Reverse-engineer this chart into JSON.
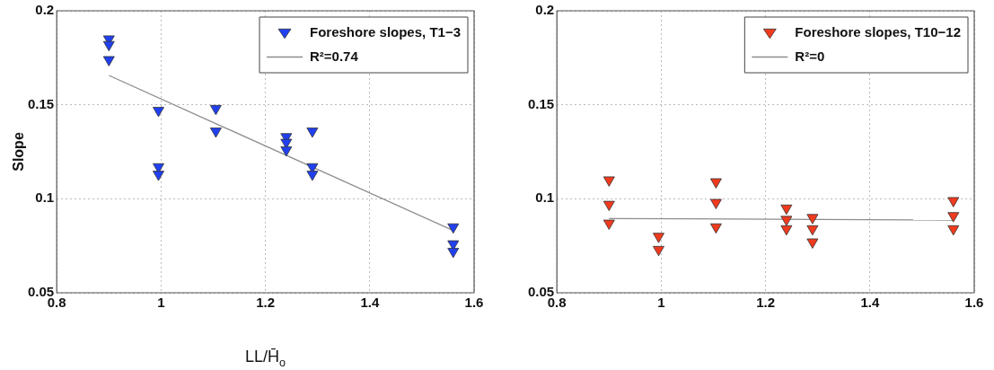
{
  "chart_data": [
    {
      "type": "scatter",
      "ylabel": "Slope",
      "xlabel": "LL/H̄$_{o}$",
      "xlim": [
        0.8,
        1.6
      ],
      "ylim": [
        0.05,
        0.2
      ],
      "xticks": [
        0.8,
        1,
        1.2,
        1.4,
        1.6
      ],
      "yticks": [
        0.05,
        0.1,
        0.15,
        0.2
      ],
      "grid": true,
      "legend": "top right",
      "series": [
        {
          "name": "Foreshore slopes, T1−3",
          "marker": "triangle",
          "color": "#2040f0",
          "x": [
            0.9,
            0.9,
            0.9,
            0.995,
            0.995,
            0.995,
            1.105,
            1.105,
            1.24,
            1.24,
            1.24,
            1.29,
            1.29,
            1.29,
            1.56,
            1.56,
            1.56
          ],
          "values": [
            0.185,
            0.182,
            0.174,
            0.147,
            0.117,
            0.113,
            0.148,
            0.136,
            0.133,
            0.13,
            0.126,
            0.136,
            0.117,
            0.113,
            0.085,
            0.076,
            0.072
          ]
        },
        {
          "name": "R²=0.74",
          "type": "line",
          "marker": "none",
          "color": "#8c8c8c",
          "x": [
            0.9,
            1.56
          ],
          "values": [
            0.1656,
            0.0831
          ]
        }
      ]
    },
    {
      "type": "scatter",
      "xlim": [
        0.8,
        1.6
      ],
      "ylim": [
        0.05,
        0.2
      ],
      "xticks": [
        0.8,
        1,
        1.2,
        1.4,
        1.6
      ],
      "yticks": [
        0.05,
        0.1,
        0.15,
        0.2
      ],
      "grid": true,
      "legend": "top right",
      "series": [
        {
          "name": "Foreshore slopes, T10−12",
          "marker": "triangle",
          "color": "#f03a1e",
          "x": [
            0.9,
            0.9,
            0.9,
            0.995,
            0.995,
            1.105,
            1.105,
            1.105,
            1.24,
            1.24,
            1.24,
            1.29,
            1.29,
            1.29,
            1.56,
            1.56,
            1.56
          ],
          "values": [
            0.11,
            0.097,
            0.087,
            0.08,
            0.073,
            0.109,
            0.098,
            0.085,
            0.095,
            0.089,
            0.084,
            0.09,
            0.084,
            0.077,
            0.099,
            0.091,
            0.084
          ]
        },
        {
          "name": "R²=0",
          "type": "line",
          "marker": "none",
          "color": "#8c8c8c",
          "x": [
            0.9,
            1.56
          ],
          "values": [
            0.0895,
            0.0887
          ]
        }
      ]
    }
  ]
}
